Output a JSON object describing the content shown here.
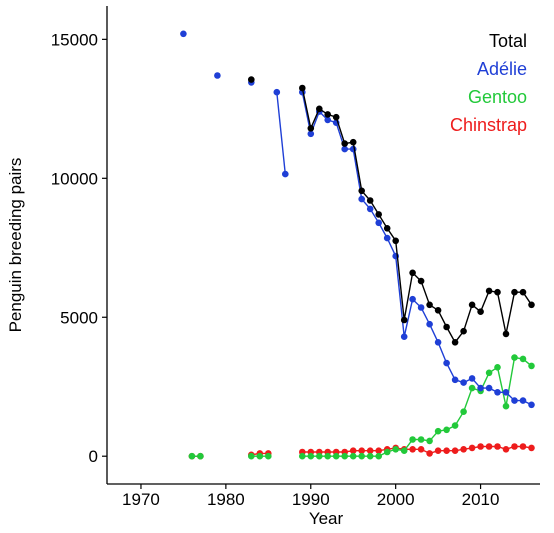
{
  "chart_data": {
    "type": "line",
    "xlabel": "Year",
    "ylabel": "Penguin breeding pairs",
    "xlim": [
      1966,
      2017
    ],
    "ylim": [
      -1000,
      16200
    ],
    "x_ticks": [
      1970,
      1980,
      1990,
      2000,
      2010
    ],
    "y_ticks": [
      0,
      5000,
      10000,
      15000
    ],
    "grid": false,
    "legend_position": "top-right",
    "series": [
      {
        "name": "Total",
        "color": "#000000",
        "segments": [
          [
            [
              1983,
              13550
            ]
          ],
          [
            [
              1989,
              13250
            ],
            [
              1990,
              11800
            ],
            [
              1991,
              12500
            ],
            [
              1992,
              12300
            ],
            [
              1993,
              12200
            ],
            [
              1994,
              11250
            ],
            [
              1995,
              11300
            ],
            [
              1996,
              9550
            ],
            [
              1997,
              9200
            ],
            [
              1998,
              8700
            ],
            [
              1999,
              8200
            ],
            [
              2000,
              7750
            ],
            [
              2001,
              4900
            ],
            [
              2002,
              6600
            ],
            [
              2003,
              6300
            ],
            [
              2004,
              5450
            ],
            [
              2005,
              5250
            ],
            [
              2006,
              4650
            ],
            [
              2007,
              4100
            ],
            [
              2008,
              4500
            ],
            [
              2009,
              5450
            ],
            [
              2010,
              5200
            ],
            [
              2011,
              5950
            ],
            [
              2012,
              5900
            ],
            [
              2013,
              4400
            ],
            [
              2014,
              5900
            ],
            [
              2015,
              5900
            ],
            [
              2016,
              5450
            ]
          ]
        ]
      },
      {
        "name": "Adélie",
        "color": "#1f3fd6",
        "segments": [
          [
            [
              1975,
              15200
            ]
          ],
          [
            [
              1979,
              13700
            ]
          ],
          [
            [
              1983,
              13450
            ]
          ],
          [
            [
              1986,
              13100
            ],
            [
              1987,
              10150
            ]
          ],
          [
            [
              1989,
              13100
            ],
            [
              1990,
              11600
            ],
            [
              1991,
              12400
            ],
            [
              1992,
              12100
            ],
            [
              1993,
              12000
            ],
            [
              1994,
              11050
            ],
            [
              1995,
              11050
            ],
            [
              1996,
              9250
            ],
            [
              1997,
              8900
            ],
            [
              1998,
              8400
            ],
            [
              1999,
              7850
            ],
            [
              2000,
              7200
            ],
            [
              2001,
              4300
            ],
            [
              2002,
              5650
            ],
            [
              2003,
              5350
            ],
            [
              2004,
              4750
            ],
            [
              2005,
              4100
            ],
            [
              2006,
              3350
            ],
            [
              2007,
              2750
            ],
            [
              2008,
              2650
            ],
            [
              2009,
              2800
            ],
            [
              2010,
              2450
            ],
            [
              2011,
              2450
            ],
            [
              2012,
              2300
            ],
            [
              2013,
              2300
            ],
            [
              2014,
              2000
            ],
            [
              2015,
              2000
            ],
            [
              2016,
              1850
            ]
          ]
        ]
      },
      {
        "name": "Gentoo",
        "color": "#22c93a",
        "segments": [
          [
            [
              1976,
              0
            ],
            [
              1977,
              0
            ]
          ],
          [
            [
              1983,
              0
            ],
            [
              1984,
              0
            ],
            [
              1985,
              0
            ]
          ],
          [
            [
              1989,
              0
            ],
            [
              1990,
              0
            ],
            [
              1991,
              0
            ],
            [
              1992,
              0
            ],
            [
              1993,
              0
            ],
            [
              1994,
              0
            ],
            [
              1995,
              0
            ],
            [
              1996,
              0
            ],
            [
              1997,
              0
            ],
            [
              1998,
              0
            ],
            [
              1999,
              150
            ],
            [
              2000,
              250
            ],
            [
              2001,
              200
            ],
            [
              2002,
              600
            ],
            [
              2003,
              600
            ],
            [
              2004,
              550
            ],
            [
              2005,
              900
            ],
            [
              2006,
              950
            ],
            [
              2007,
              1100
            ],
            [
              2008,
              1600
            ],
            [
              2009,
              2450
            ],
            [
              2010,
              2350
            ],
            [
              2011,
              3000
            ],
            [
              2012,
              3200
            ],
            [
              2013,
              1800
            ],
            [
              2014,
              3550
            ],
            [
              2015,
              3500
            ],
            [
              2016,
              3250
            ]
          ]
        ]
      },
      {
        "name": "Chinstrap",
        "color": "#ee1c1c",
        "segments": [
          [
            [
              1976,
              0
            ],
            [
              1977,
              0
            ]
          ],
          [
            [
              1983,
              50
            ],
            [
              1984,
              100
            ],
            [
              1985,
              100
            ]
          ],
          [
            [
              1989,
              150
            ],
            [
              1990,
              150
            ],
            [
              1991,
              150
            ],
            [
              1992,
              150
            ],
            [
              1993,
              150
            ],
            [
              1994,
              150
            ],
            [
              1995,
              200
            ],
            [
              1996,
              200
            ],
            [
              1997,
              200
            ],
            [
              1998,
              200
            ],
            [
              1999,
              250
            ],
            [
              2000,
              300
            ],
            [
              2001,
              250
            ],
            [
              2002,
              250
            ],
            [
              2003,
              250
            ],
            [
              2004,
              100
            ],
            [
              2005,
              200
            ],
            [
              2006,
              200
            ],
            [
              2007,
              200
            ],
            [
              2008,
              250
            ],
            [
              2009,
              300
            ],
            [
              2010,
              350
            ],
            [
              2011,
              350
            ],
            [
              2012,
              350
            ],
            [
              2013,
              250
            ],
            [
              2014,
              350
            ],
            [
              2015,
              350
            ],
            [
              2016,
              300
            ]
          ]
        ]
      }
    ]
  }
}
